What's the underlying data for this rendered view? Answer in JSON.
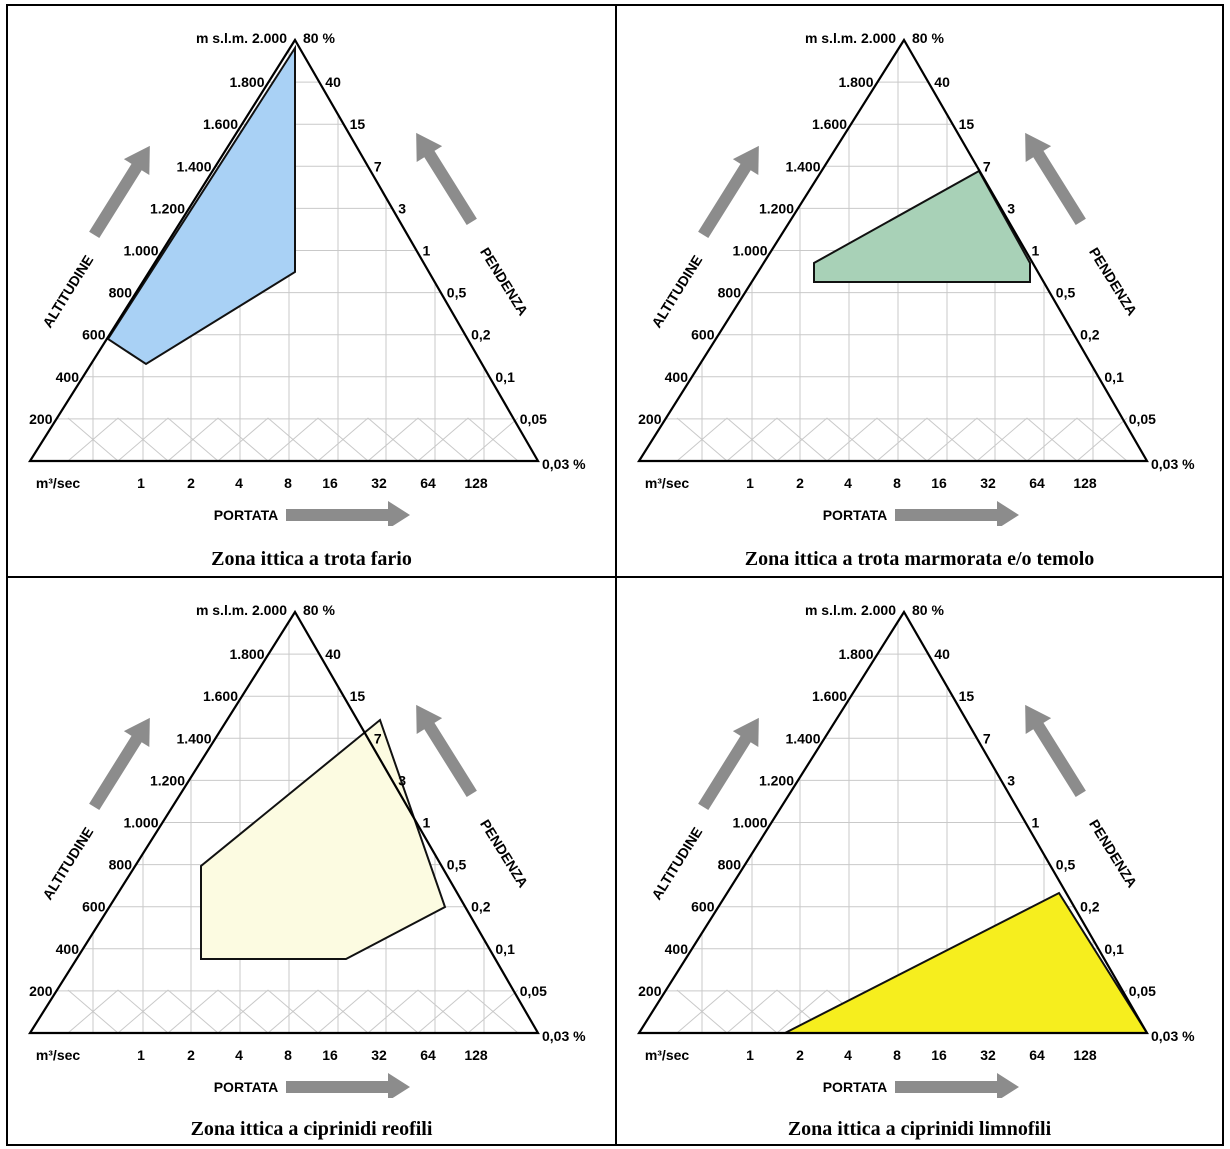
{
  "axes": {
    "altitude_title": "ALTITUDINE",
    "altitude_ticks": [
      "200",
      "400",
      "600",
      "800",
      "1.000",
      "1.200",
      "1.400",
      "1.600",
      "1.800"
    ],
    "altitude_top": "m s.l.m. 2.000",
    "slope_title": "PENDENZA",
    "slope_top": "80 %",
    "slope_ticks": [
      "40",
      "15",
      "7",
      "3",
      "1",
      "0,5",
      "0,2",
      "0,1",
      "0,05"
    ],
    "slope_bottom": "0,03 %",
    "flow_title": "PORTATA",
    "flow_unit": "m³/sec",
    "flow_ticks": [
      "1",
      "2",
      "4",
      "8",
      "16",
      "32",
      "64",
      "128"
    ]
  },
  "panels": [
    {
      "caption": "Zona ittica a trota fario",
      "fill": "#a9d1f5"
    },
    {
      "caption": "Zona ittica a trota marmorata e/o temolo",
      "fill": "#a8d1b7"
    },
    {
      "caption": "Zona ittica a ciprinidi reofili",
      "fill": "#fcfbe1"
    },
    {
      "caption": "Zona ittica a ciprinidi limnofili",
      "fill": "#f6ee1e"
    }
  ],
  "colors": {
    "border": "#000000",
    "gridline": "#c9c9c9",
    "arrow": "#8c8c8c"
  }
}
